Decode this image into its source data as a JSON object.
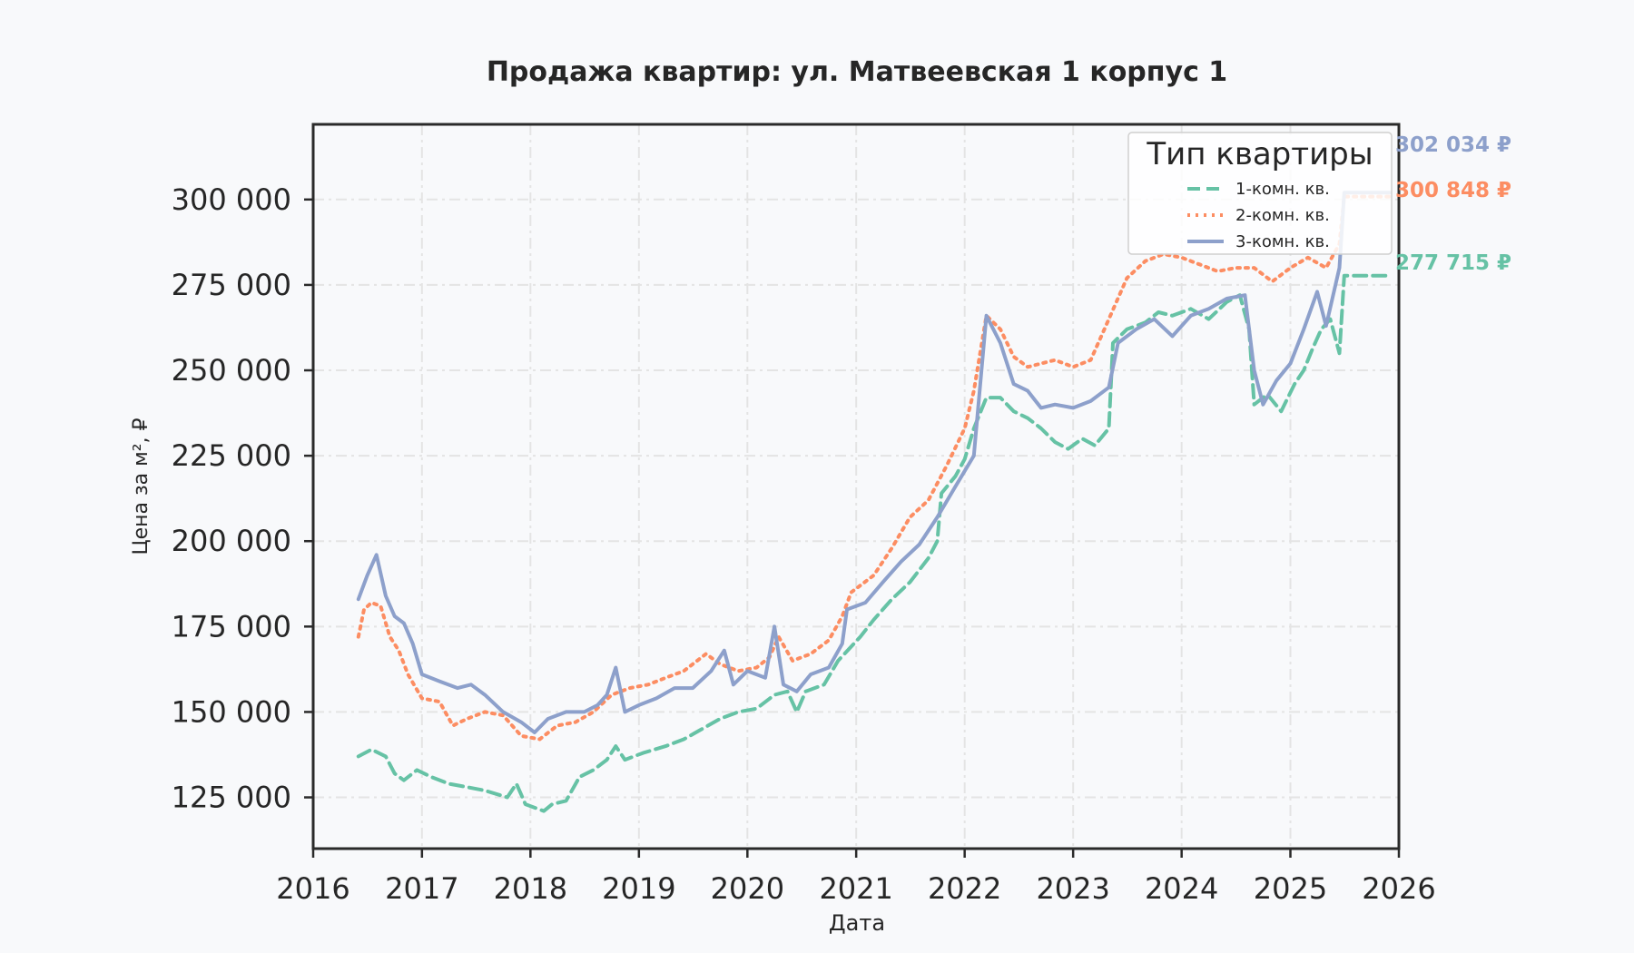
{
  "chart_data": {
    "type": "line",
    "title": "Продажа квартир: ул. Матвеевская 1 корпус 1",
    "xlabel": "Дата",
    "ylabel": "Цена за м², ₽",
    "xlim": [
      "2016-01-01",
      "2026-01-01"
    ],
    "ylim": [
      110000,
      322000
    ],
    "x_ticks": [
      "2016",
      "2017",
      "2018",
      "2019",
      "2020",
      "2021",
      "2022",
      "2023",
      "2024",
      "2025",
      "2026"
    ],
    "y_ticks": [
      125000,
      150000,
      175000,
      200000,
      225000,
      250000,
      275000,
      300000
    ],
    "y_tick_labels": [
      "125 000",
      "150 000",
      "175 000",
      "200 000",
      "225 000",
      "250 000",
      "275 000",
      "300 000"
    ],
    "grid": true,
    "legend": {
      "title": "Тип квартиры",
      "position": "top-right"
    },
    "series": [
      {
        "name": "1-комн. кв.",
        "color": "#66c2a5",
        "dash": "dashed",
        "end_label": "277 715 ₽",
        "points": [
          [
            "2016-06-01",
            137000
          ],
          [
            "2016-07-15",
            139000
          ],
          [
            "2016-09-01",
            137000
          ],
          [
            "2016-10-01",
            132000
          ],
          [
            "2016-11-01",
            130000
          ],
          [
            "2016-12-15",
            133000
          ],
          [
            "2017-02-01",
            131000
          ],
          [
            "2017-04-01",
            129000
          ],
          [
            "2017-06-01",
            128000
          ],
          [
            "2017-08-01",
            127000
          ],
          [
            "2017-10-15",
            125000
          ],
          [
            "2017-11-15",
            129000
          ],
          [
            "2017-12-15",
            123000
          ],
          [
            "2018-02-15",
            121000
          ],
          [
            "2018-03-15",
            123000
          ],
          [
            "2018-05-01",
            124000
          ],
          [
            "2018-06-15",
            131000
          ],
          [
            "2018-08-01",
            133000
          ],
          [
            "2018-09-15",
            136000
          ],
          [
            "2018-10-15",
            140000
          ],
          [
            "2018-11-15",
            136000
          ],
          [
            "2019-01-15",
            138000
          ],
          [
            "2019-04-01",
            140000
          ],
          [
            "2019-06-01",
            142000
          ],
          [
            "2019-08-01",
            145000
          ],
          [
            "2019-10-01",
            148000
          ],
          [
            "2019-12-01",
            150000
          ],
          [
            "2020-02-01",
            151000
          ],
          [
            "2020-04-01",
            155000
          ],
          [
            "2020-05-15",
            156000
          ],
          [
            "2020-06-15",
            150000
          ],
          [
            "2020-07-15",
            156000
          ],
          [
            "2020-09-15",
            158000
          ],
          [
            "2020-11-01",
            165000
          ],
          [
            "2021-01-15",
            172000
          ],
          [
            "2021-03-01",
            177000
          ],
          [
            "2021-05-01",
            183000
          ],
          [
            "2021-07-01",
            188000
          ],
          [
            "2021-09-01",
            195000
          ],
          [
            "2021-10-01",
            200000
          ],
          [
            "2021-10-15",
            214000
          ],
          [
            "2021-12-01",
            219000
          ],
          [
            "2022-01-01",
            224000
          ],
          [
            "2022-02-01",
            233000
          ],
          [
            "2022-03-15",
            242000
          ],
          [
            "2022-05-01",
            242000
          ],
          [
            "2022-06-15",
            238000
          ],
          [
            "2022-08-01",
            236000
          ],
          [
            "2022-09-15",
            233000
          ],
          [
            "2022-11-01",
            229000
          ],
          [
            "2022-12-15",
            227000
          ],
          [
            "2023-02-01",
            230000
          ],
          [
            "2023-03-15",
            228000
          ],
          [
            "2023-05-01",
            233000
          ],
          [
            "2023-05-15",
            258000
          ],
          [
            "2023-07-01",
            262000
          ],
          [
            "2023-09-01",
            264000
          ],
          [
            "2023-10-15",
            267000
          ],
          [
            "2023-12-01",
            266000
          ],
          [
            "2024-02-01",
            268000
          ],
          [
            "2024-04-01",
            265000
          ],
          [
            "2024-06-01",
            270000
          ],
          [
            "2024-07-15",
            272000
          ],
          [
            "2024-08-15",
            262000
          ],
          [
            "2024-09-01",
            240000
          ],
          [
            "2024-10-15",
            243000
          ],
          [
            "2024-12-01",
            238000
          ],
          [
            "2025-01-15",
            246000
          ],
          [
            "2025-02-15",
            250000
          ],
          [
            "2025-03-15",
            256000
          ],
          [
            "2025-04-15",
            262000
          ],
          [
            "2025-05-15",
            265000
          ],
          [
            "2025-06-15",
            255000
          ],
          [
            "2025-07-01",
            277715
          ],
          [
            "2025-12-01",
            277715
          ]
        ]
      },
      {
        "name": "2-комн. кв.",
        "color": "#fc8d62",
        "dash": "dotted",
        "end_label": "300 848 ₽",
        "points": [
          [
            "2016-06-01",
            172000
          ],
          [
            "2016-06-20",
            180000
          ],
          [
            "2016-07-15",
            182000
          ],
          [
            "2016-08-15",
            181000
          ],
          [
            "2016-09-15",
            172000
          ],
          [
            "2016-10-15",
            168000
          ],
          [
            "2016-11-15",
            161000
          ],
          [
            "2017-01-01",
            154000
          ],
          [
            "2017-03-01",
            153000
          ],
          [
            "2017-04-15",
            146000
          ],
          [
            "2017-06-01",
            148000
          ],
          [
            "2017-08-01",
            150000
          ],
          [
            "2017-10-01",
            149000
          ],
          [
            "2017-12-01",
            143000
          ],
          [
            "2018-02-01",
            142000
          ],
          [
            "2018-04-01",
            146000
          ],
          [
            "2018-06-01",
            147000
          ],
          [
            "2018-08-01",
            150000
          ],
          [
            "2018-10-01",
            155000
          ],
          [
            "2018-12-01",
            157000
          ],
          [
            "2019-02-01",
            158000
          ],
          [
            "2019-04-01",
            160000
          ],
          [
            "2019-06-01",
            162000
          ],
          [
            "2019-08-15",
            167000
          ],
          [
            "2019-10-01",
            164000
          ],
          [
            "2019-12-01",
            162000
          ],
          [
            "2020-02-01",
            163000
          ],
          [
            "2020-03-15",
            166000
          ],
          [
            "2020-04-15",
            172000
          ],
          [
            "2020-06-01",
            165000
          ],
          [
            "2020-08-01",
            167000
          ],
          [
            "2020-10-01",
            171000
          ],
          [
            "2020-11-15",
            178000
          ],
          [
            "2020-12-15",
            185000
          ],
          [
            "2021-03-01",
            190000
          ],
          [
            "2021-05-01",
            198000
          ],
          [
            "2021-07-01",
            207000
          ],
          [
            "2021-09-01",
            212000
          ],
          [
            "2021-11-01",
            222000
          ],
          [
            "2022-01-01",
            233000
          ],
          [
            "2022-02-01",
            244000
          ],
          [
            "2022-03-15",
            266000
          ],
          [
            "2022-05-01",
            262000
          ],
          [
            "2022-06-15",
            254000
          ],
          [
            "2022-08-01",
            251000
          ],
          [
            "2022-09-15",
            252000
          ],
          [
            "2022-11-01",
            253000
          ],
          [
            "2023-01-01",
            251000
          ],
          [
            "2023-03-01",
            253000
          ],
          [
            "2023-05-01",
            265000
          ],
          [
            "2023-07-01",
            277000
          ],
          [
            "2023-09-01",
            282000
          ],
          [
            "2023-11-01",
            284000
          ],
          [
            "2024-01-01",
            283000
          ],
          [
            "2024-03-01",
            281000
          ],
          [
            "2024-05-01",
            279000
          ],
          [
            "2024-07-01",
            280000
          ],
          [
            "2024-09-01",
            280000
          ],
          [
            "2024-11-01",
            276000
          ],
          [
            "2025-01-01",
            280000
          ],
          [
            "2025-03-01",
            283000
          ],
          [
            "2025-05-01",
            280000
          ],
          [
            "2025-06-15",
            287000
          ],
          [
            "2025-07-01",
            300848
          ],
          [
            "2025-12-01",
            300848
          ]
        ]
      },
      {
        "name": "3-комн. кв.",
        "color": "#8da0cb",
        "dash": "solid",
        "end_label": "302 034 ₽",
        "points": [
          [
            "2016-06-01",
            183000
          ],
          [
            "2016-07-01",
            190000
          ],
          [
            "2016-08-01",
            196000
          ],
          [
            "2016-09-01",
            184000
          ],
          [
            "2016-10-01",
            178000
          ],
          [
            "2016-11-01",
            176000
          ],
          [
            "2016-12-01",
            170000
          ],
          [
            "2017-01-01",
            161000
          ],
          [
            "2017-03-01",
            159000
          ],
          [
            "2017-05-01",
            157000
          ],
          [
            "2017-06-15",
            158000
          ],
          [
            "2017-08-01",
            155000
          ],
          [
            "2017-10-01",
            150000
          ],
          [
            "2017-12-01",
            147000
          ],
          [
            "2018-01-15",
            144000
          ],
          [
            "2018-03-01",
            148000
          ],
          [
            "2018-05-01",
            150000
          ],
          [
            "2018-07-01",
            150000
          ],
          [
            "2018-08-15",
            152000
          ],
          [
            "2018-09-15",
            155000
          ],
          [
            "2018-10-15",
            163000
          ],
          [
            "2018-11-15",
            150000
          ],
          [
            "2019-01-01",
            152000
          ],
          [
            "2019-03-01",
            154000
          ],
          [
            "2019-05-01",
            157000
          ],
          [
            "2019-07-01",
            157000
          ],
          [
            "2019-09-01",
            162000
          ],
          [
            "2019-10-15",
            168000
          ],
          [
            "2019-11-15",
            158000
          ],
          [
            "2020-01-01",
            162000
          ],
          [
            "2020-03-01",
            160000
          ],
          [
            "2020-04-01",
            175000
          ],
          [
            "2020-05-01",
            158000
          ],
          [
            "2020-06-15",
            156000
          ],
          [
            "2020-08-01",
            161000
          ],
          [
            "2020-10-01",
            163000
          ],
          [
            "2020-11-15",
            170000
          ],
          [
            "2020-12-01",
            180000
          ],
          [
            "2021-02-01",
            182000
          ],
          [
            "2021-04-01",
            188000
          ],
          [
            "2021-06-01",
            194000
          ],
          [
            "2021-08-01",
            199000
          ],
          [
            "2021-10-01",
            207000
          ],
          [
            "2021-12-01",
            216000
          ],
          [
            "2022-02-01",
            225000
          ],
          [
            "2022-03-15",
            266000
          ],
          [
            "2022-05-01",
            258000
          ],
          [
            "2022-06-15",
            246000
          ],
          [
            "2022-08-01",
            244000
          ],
          [
            "2022-09-15",
            239000
          ],
          [
            "2022-11-01",
            240000
          ],
          [
            "2023-01-01",
            239000
          ],
          [
            "2023-03-01",
            241000
          ],
          [
            "2023-05-01",
            245000
          ],
          [
            "2023-06-01",
            258000
          ],
          [
            "2023-08-01",
            262000
          ],
          [
            "2023-10-01",
            265000
          ],
          [
            "2023-12-01",
            260000
          ],
          [
            "2024-02-01",
            266000
          ],
          [
            "2024-04-01",
            268000
          ],
          [
            "2024-06-01",
            271000
          ],
          [
            "2024-08-01",
            272000
          ],
          [
            "2024-09-01",
            250000
          ],
          [
            "2024-10-01",
            240000
          ],
          [
            "2024-11-15",
            247000
          ],
          [
            "2025-01-01",
            252000
          ],
          [
            "2025-02-15",
            262000
          ],
          [
            "2025-04-01",
            273000
          ],
          [
            "2025-05-01",
            263000
          ],
          [
            "2025-06-15",
            280000
          ],
          [
            "2025-07-01",
            302034
          ],
          [
            "2025-12-01",
            302034
          ]
        ]
      }
    ]
  }
}
